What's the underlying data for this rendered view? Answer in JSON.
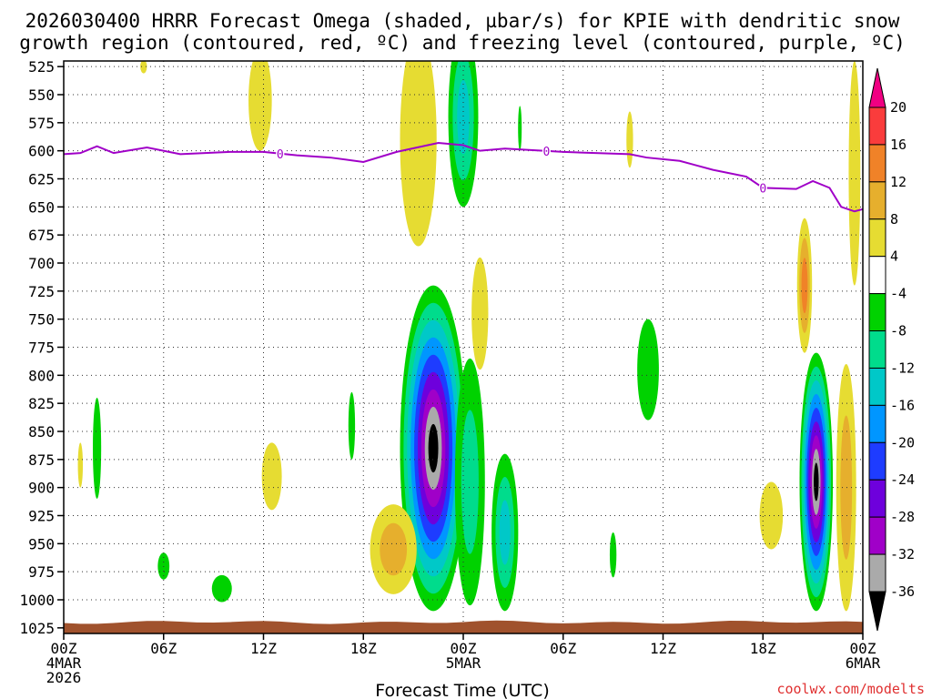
{
  "chart_data": {
    "type": "heatmap",
    "title_lines": [
      "2026030400 HRRR Forecast Omega (shaded, µbar/s) for KPIE with dendritic snow",
      "growth region (contoured, red, ºC) and freezing level (contoured, purple, ºC)"
    ],
    "xlabel": "Forecast Time (UTC)",
    "credit": "coolwx.com/modelts",
    "x_range_hours": [
      0,
      48
    ],
    "x_ticks": [
      {
        "hour": 0,
        "label": "00Z",
        "sub": [
          "4MAR",
          "2026"
        ]
      },
      {
        "hour": 6,
        "label": "06Z",
        "sub": []
      },
      {
        "hour": 12,
        "label": "12Z",
        "sub": []
      },
      {
        "hour": 18,
        "label": "18Z",
        "sub": []
      },
      {
        "hour": 24,
        "label": "00Z",
        "sub": [
          "5MAR"
        ]
      },
      {
        "hour": 30,
        "label": "06Z",
        "sub": []
      },
      {
        "hour": 36,
        "label": "12Z",
        "sub": []
      },
      {
        "hour": 42,
        "label": "18Z",
        "sub": []
      },
      {
        "hour": 48,
        "label": "00Z",
        "sub": [
          "6MAR"
        ]
      }
    ],
    "y_levels_hpa": [
      525,
      550,
      575,
      600,
      625,
      650,
      675,
      700,
      725,
      750,
      775,
      800,
      825,
      850,
      875,
      900,
      925,
      950,
      975,
      1000,
      1025
    ],
    "y_range_hpa": [
      520,
      1030
    ],
    "colorbar": {
      "units": "µbar/s",
      "tick_labels": [
        "20",
        "16",
        "12",
        "8",
        "4",
        "-4",
        "-8",
        "-12",
        "-16",
        "-20",
        "-24",
        "-28",
        "-32",
        "-36"
      ],
      "bins": [
        {
          "min": -40,
          "max": -36,
          "color": "#000000"
        },
        {
          "min": -36,
          "max": -32,
          "color": "#aaaaaa"
        },
        {
          "min": -32,
          "max": -28,
          "color": "#a000c8"
        },
        {
          "min": -28,
          "max": -24,
          "color": "#6e00dc"
        },
        {
          "min": -24,
          "max": -20,
          "color": "#1e3cff"
        },
        {
          "min": -20,
          "max": -16,
          "color": "#0096ff"
        },
        {
          "min": -16,
          "max": -12,
          "color": "#00c8c8"
        },
        {
          "min": -12,
          "max": -8,
          "color": "#00dc8c"
        },
        {
          "min": -8,
          "max": -4,
          "color": "#00d200"
        },
        {
          "min": -4,
          "max": 4,
          "color": "#ffffff"
        },
        {
          "min": 4,
          "max": 8,
          "color": "#e6dc32"
        },
        {
          "min": 8,
          "max": 12,
          "color": "#e6af2d"
        },
        {
          "min": 12,
          "max": 16,
          "color": "#f08228"
        },
        {
          "min": 16,
          "max": 20,
          "color": "#fa3c3c"
        },
        {
          "min": 20,
          "max": 24,
          "color": "#f00082"
        }
      ]
    },
    "omega_features": [
      {
        "name": "ascent-core-5mar",
        "hour_center": 22.2,
        "p_center": 865,
        "hour_halfwidth": 2.0,
        "p_halfwidth": 145,
        "min_omega": -40
      },
      {
        "name": "ascent-core-5mar-east",
        "hour_center": 24.4,
        "p_center": 895,
        "hour_halfwidth": 0.9,
        "p_halfwidth": 110,
        "min_omega": -12
      },
      {
        "name": "ascent-upper-00z",
        "hour_center": 24.0,
        "p_center": 570,
        "hour_halfwidth": 0.9,
        "p_halfwidth": 80,
        "min_omega": -14
      },
      {
        "name": "ascent-secondary-03z",
        "hour_center": 26.5,
        "p_center": 940,
        "hour_halfwidth": 0.8,
        "p_halfwidth": 70,
        "min_omega": -16
      },
      {
        "name": "ascent-core-6mar",
        "hour_center": 45.2,
        "p_center": 895,
        "hour_halfwidth": 1.0,
        "p_halfwidth": 115,
        "min_omega": -40
      },
      {
        "name": "ascent-small-02z",
        "hour_center": 2.0,
        "p_center": 865,
        "hour_halfwidth": 0.25,
        "p_halfwidth": 45,
        "min_omega": -6
      },
      {
        "name": "ascent-small-06z",
        "hour_center": 6.0,
        "p_center": 970,
        "hour_halfwidth": 0.35,
        "p_halfwidth": 12,
        "min_omega": -6
      },
      {
        "name": "ascent-small-10z",
        "hour_center": 9.5,
        "p_center": 990,
        "hour_halfwidth": 0.6,
        "p_halfwidth": 12,
        "min_omega": -6
      },
      {
        "name": "ascent-small-17z",
        "hour_center": 17.3,
        "p_center": 845,
        "hour_halfwidth": 0.2,
        "p_halfwidth": 30,
        "min_omega": -6
      },
      {
        "name": "ascent-small-03z",
        "hour_center": 27.4,
        "p_center": 580,
        "hour_halfwidth": 0.1,
        "p_halfwidth": 20,
        "min_omega": -5
      },
      {
        "name": "ascent-small-09z",
        "hour_center": 33.0,
        "p_center": 960,
        "hour_halfwidth": 0.2,
        "p_halfwidth": 20,
        "min_omega": -5
      },
      {
        "name": "ascent-11z",
        "hour_center": 35.1,
        "p_center": 795,
        "hour_halfwidth": 0.65,
        "p_halfwidth": 45,
        "min_omega": -8
      },
      {
        "name": "sink-upper-12z",
        "hour_center": 11.8,
        "p_center": 555,
        "hour_halfwidth": 0.7,
        "p_halfwidth": 45,
        "min_omega": 6
      },
      {
        "name": "sink-upper-21z",
        "hour_center": 21.3,
        "p_center": 590,
        "hour_halfwidth": 1.1,
        "p_halfwidth": 95,
        "min_omega": 6
      },
      {
        "name": "sink-low-20z",
        "hour_center": 19.8,
        "p_center": 955,
        "hour_halfwidth": 1.4,
        "p_halfwidth": 40,
        "min_omega": 10
      },
      {
        "name": "sink-mid-12z",
        "hour_center": 12.5,
        "p_center": 890,
        "hour_halfwidth": 0.6,
        "p_halfwidth": 30,
        "min_omega": 6
      },
      {
        "name": "sink-mid-01z",
        "hour_center": 25.0,
        "p_center": 745,
        "hour_halfwidth": 0.5,
        "p_halfwidth": 50,
        "min_omega": 5
      },
      {
        "name": "sink-upper-10z",
        "hour_center": 34.0,
        "p_center": 590,
        "hour_halfwidth": 0.2,
        "p_halfwidth": 25,
        "min_omega": 5
      },
      {
        "name": "sink-mid-21z",
        "hour_center": 44.5,
        "p_center": 720,
        "hour_halfwidth": 0.45,
        "p_halfwidth": 60,
        "min_omega": 14
      },
      {
        "name": "sink-low-19z",
        "hour_center": 42.5,
        "p_center": 925,
        "hour_halfwidth": 0.7,
        "p_halfwidth": 30,
        "min_omega": 6
      },
      {
        "name": "sink-low-23z",
        "hour_center": 47.0,
        "p_center": 900,
        "hour_halfwidth": 0.6,
        "p_halfwidth": 110,
        "min_omega": 10
      },
      {
        "name": "sink-upper-23z",
        "hour_center": 47.5,
        "p_center": 620,
        "hour_halfwidth": 0.35,
        "p_halfwidth": 100,
        "min_omega": 6
      },
      {
        "name": "sink-small-00z",
        "hour_center": 1.0,
        "p_center": 880,
        "hour_halfwidth": 0.15,
        "p_halfwidth": 20,
        "min_omega": 5
      },
      {
        "name": "sink-small-04z",
        "hour_center": 4.8,
        "p_center": 525,
        "hour_halfwidth": 0.2,
        "p_halfwidth": 6,
        "min_omega": 5
      }
    ],
    "freezing_level": {
      "color": "#a000c8",
      "contour_label": "0",
      "label_hours": [
        13,
        29,
        42
      ],
      "points": [
        [
          0,
          603
        ],
        [
          1,
          602
        ],
        [
          2,
          596
        ],
        [
          3,
          602
        ],
        [
          5,
          597
        ],
        [
          7,
          603
        ],
        [
          10,
          601
        ],
        [
          12,
          601
        ],
        [
          14,
          604
        ],
        [
          16,
          606
        ],
        [
          18,
          610
        ],
        [
          20,
          601
        ],
        [
          22.5,
          593
        ],
        [
          24,
          595
        ],
        [
          25,
          600
        ],
        [
          26.5,
          598
        ],
        [
          30,
          601
        ],
        [
          34,
          603
        ],
        [
          35,
          606
        ],
        [
          37,
          609
        ],
        [
          39,
          617
        ],
        [
          41,
          623
        ],
        [
          42,
          633
        ],
        [
          44,
          634
        ],
        [
          45,
          627
        ],
        [
          46,
          633
        ],
        [
          46.7,
          650
        ],
        [
          47.5,
          654
        ],
        [
          48,
          652
        ]
      ]
    },
    "terrain": {
      "color": "#a0522d",
      "top_hpa": 1020
    }
  }
}
